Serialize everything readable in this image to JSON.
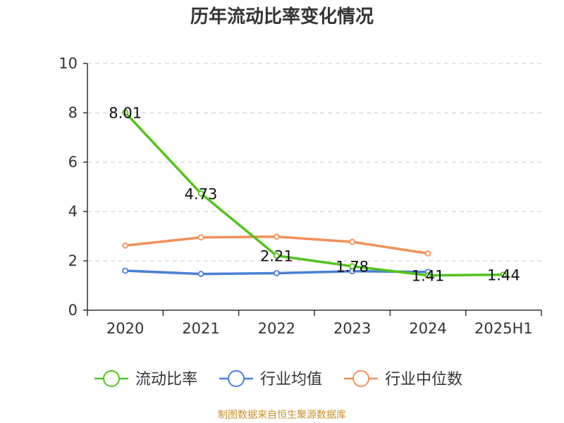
{
  "chart_data": {
    "type": "line",
    "title": "历年流动比率变化情况",
    "categories": [
      "2020",
      "2021",
      "2022",
      "2023",
      "2024",
      "2025H1"
    ],
    "ylim": [
      0,
      10
    ],
    "yticks": [
      "0",
      "2",
      "4",
      "6",
      "8",
      "10"
    ],
    "grid": true,
    "legend_position": "bottom",
    "series": [
      {
        "name": "流动比率",
        "color": "#52c41a",
        "values": [
          8.01,
          4.73,
          2.21,
          1.78,
          1.41,
          1.44
        ],
        "labels": [
          "8.01",
          "4.73",
          "2.21",
          "1.78",
          "1.41",
          "1.44"
        ]
      },
      {
        "name": "行业均值",
        "color": "#4a7fd6",
        "values": [
          1.6,
          1.47,
          1.5,
          1.58,
          1.55,
          null
        ]
      },
      {
        "name": "行业中位数",
        "color": "#f39059",
        "values": [
          2.62,
          2.95,
          2.98,
          2.77,
          2.3,
          null
        ]
      }
    ]
  },
  "footer": {
    "source": "制图数据来自恒生聚源数据库"
  }
}
